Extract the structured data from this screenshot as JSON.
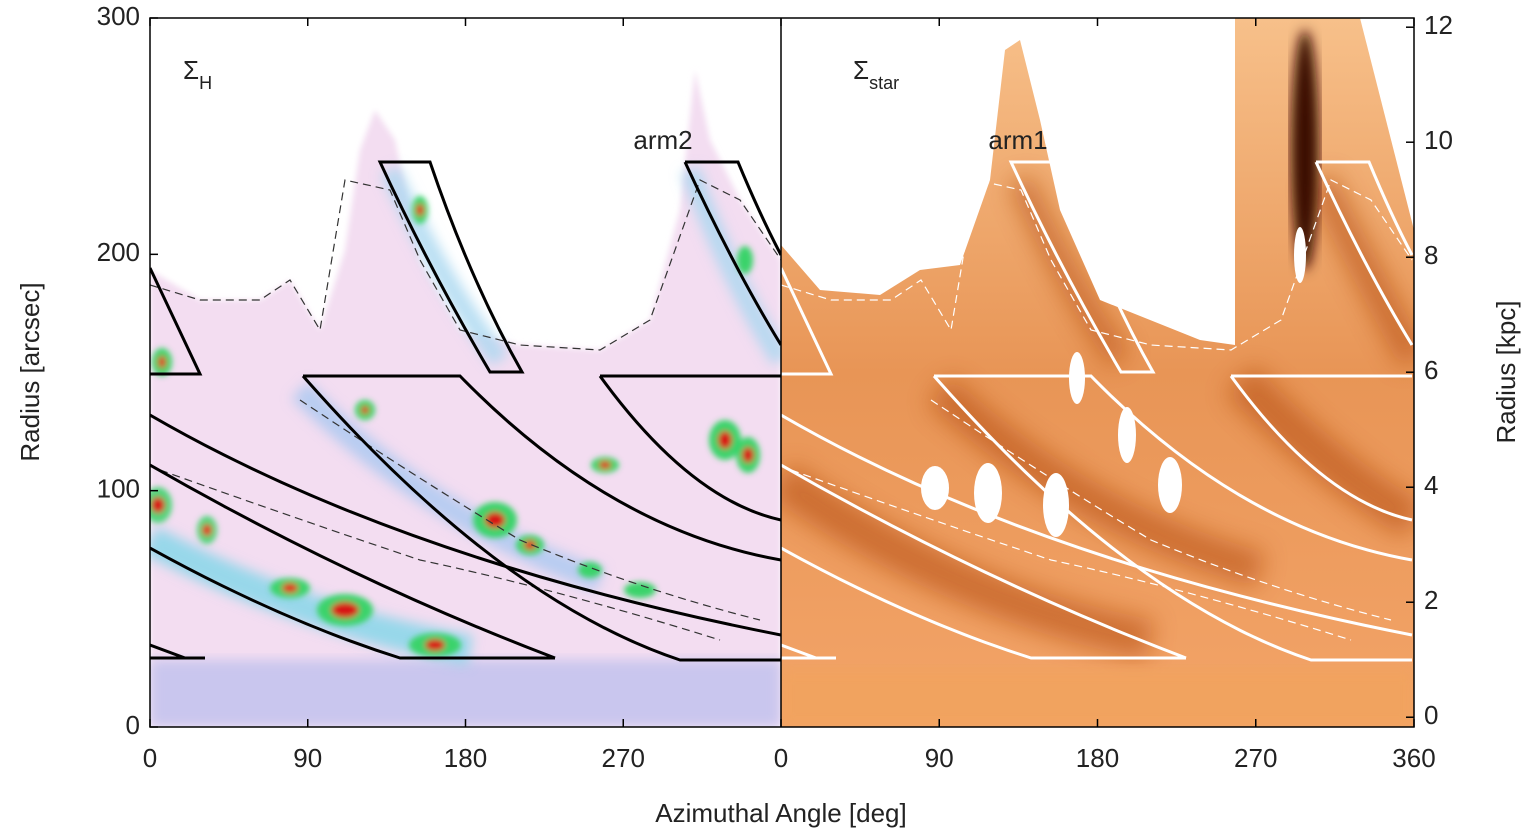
{
  "chart_data": [
    {
      "type": "heatmap",
      "panel_label": "Σ",
      "panel_label_sub": "H",
      "annotation": "arm2",
      "xlabel": "Azimuthal Angle [deg]",
      "xlim": [
        0,
        360
      ],
      "xticks": [
        0,
        90,
        180,
        270
      ],
      "ylabel": "Radius [arcsec]",
      "ylim": [
        0,
        300
      ],
      "yticks": [
        0,
        100,
        200,
        300
      ]
    },
    {
      "type": "heatmap",
      "panel_label": "Σ",
      "panel_label_sub": "star",
      "annotation": "arm1",
      "xlim": [
        0,
        360
      ],
      "xticks": [
        0,
        90,
        180,
        270,
        360
      ],
      "y2label": "Radius [kpc]",
      "y2lim": [
        -0.17,
        12.16
      ],
      "y2ticks": [
        0,
        2,
        4,
        6,
        8,
        10,
        12
      ]
    }
  ]
}
